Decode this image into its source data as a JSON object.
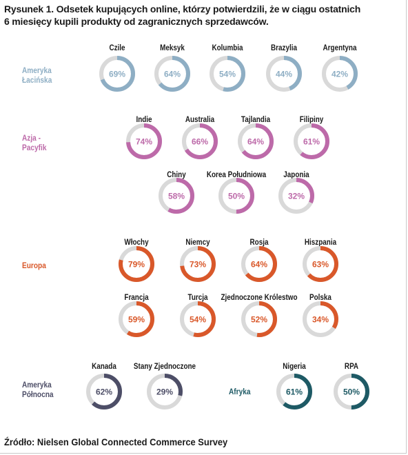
{
  "title_lines": [
    "Rysunek 1. Odsetek kupujących online, którzy potwierdzili, że w ciągu ostatnich",
    "6 miesięcy kupili produkty od zagranicznych sprzedawców."
  ],
  "source": "Źródło: Nielsen Global Connected Commerce Survey",
  "colors": {
    "track": "#d9d9d9",
    "latam": "#8eaec4",
    "apac": "#bd6aa9",
    "europe": "#d9582a",
    "namerica": "#4d4e67",
    "africa": "#1e5a65"
  },
  "chart_data": {
    "type": "donut",
    "unit": "%",
    "regions": [
      {
        "key": "latam",
        "label_lines": [
          "Ameryka",
          "Łacińska"
        ],
        "countries": [
          {
            "name": "Czile",
            "value": 69,
            "label": "69%"
          },
          {
            "name": "Meksyk",
            "value": 64,
            "label": "64%"
          },
          {
            "name": "Kolumbia",
            "value": 54,
            "label": "54%"
          },
          {
            "name": "Brazylia",
            "value": 44,
            "label": "44%"
          },
          {
            "name": "Argentyna",
            "value": 42,
            "label": "42%"
          }
        ]
      },
      {
        "key": "apac",
        "label_lines": [
          "Azja -",
          "Pacyfik"
        ],
        "countries": [
          {
            "name": "Indie",
            "value": 74,
            "label": "74%"
          },
          {
            "name": "Australia",
            "value": 66,
            "label": "66%"
          },
          {
            "name": "Tajlandia",
            "value": 64,
            "label": "64%"
          },
          {
            "name": "Filipiny",
            "value": 61,
            "label": "61%"
          },
          {
            "name": "Chiny",
            "value": 58,
            "label": "58%"
          },
          {
            "name": "Korea Południowa",
            "value": 50,
            "label": "50%"
          },
          {
            "name": "Japonia",
            "value": 32,
            "label": "32%"
          }
        ]
      },
      {
        "key": "europe",
        "label_lines": [
          "Europa"
        ],
        "countries": [
          {
            "name": "Włochy",
            "value": 79,
            "label": "79%"
          },
          {
            "name": "Niemcy",
            "value": 73,
            "label": "73%"
          },
          {
            "name": "Rosja",
            "value": 64,
            "label": "64%"
          },
          {
            "name": "Hiszpania",
            "value": 63,
            "label": "63%"
          },
          {
            "name": "Francja",
            "value": 59,
            "label": "59%"
          },
          {
            "name": "Turcja",
            "value": 54,
            "label": "54%"
          },
          {
            "name": "Zjednoczone Królestwo",
            "value": 52,
            "label": "52%"
          },
          {
            "name": "Polska",
            "value": 34,
            "label": "34%"
          }
        ]
      },
      {
        "key": "namerica",
        "label_lines": [
          "Ameryka",
          "Północna"
        ],
        "countries": [
          {
            "name": "Kanada",
            "value": 62,
            "label": "62%"
          },
          {
            "name": "Stany Zjednoczone",
            "value": 29,
            "label": "29%"
          }
        ]
      },
      {
        "key": "africa",
        "label_lines": [
          "Afryka"
        ],
        "countries": [
          {
            "name": "Nigeria",
            "value": 61,
            "label": "61%"
          },
          {
            "name": "RPA",
            "value": 50,
            "label": "50%"
          }
        ]
      }
    ]
  }
}
